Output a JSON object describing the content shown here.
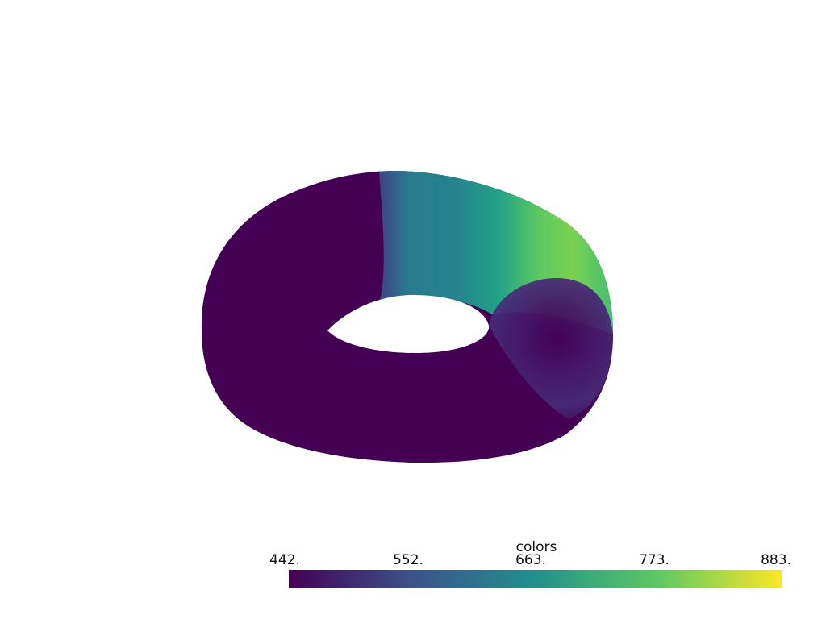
{
  "scalar_bar": {
    "title": "colors",
    "ticks": [
      "442.",
      "552.",
      "663.",
      "773.",
      "883."
    ],
    "colormap": [
      "#440154",
      "#3b528b",
      "#21918c",
      "#5ec962",
      "#fde725"
    ]
  },
  "mesh": {
    "shape": "torus",
    "colors": {
      "low": "#440154",
      "mid_low": "#433c84",
      "mid": "#277f8e",
      "mid_high": "#22a884",
      "high": "#7ad151"
    }
  }
}
